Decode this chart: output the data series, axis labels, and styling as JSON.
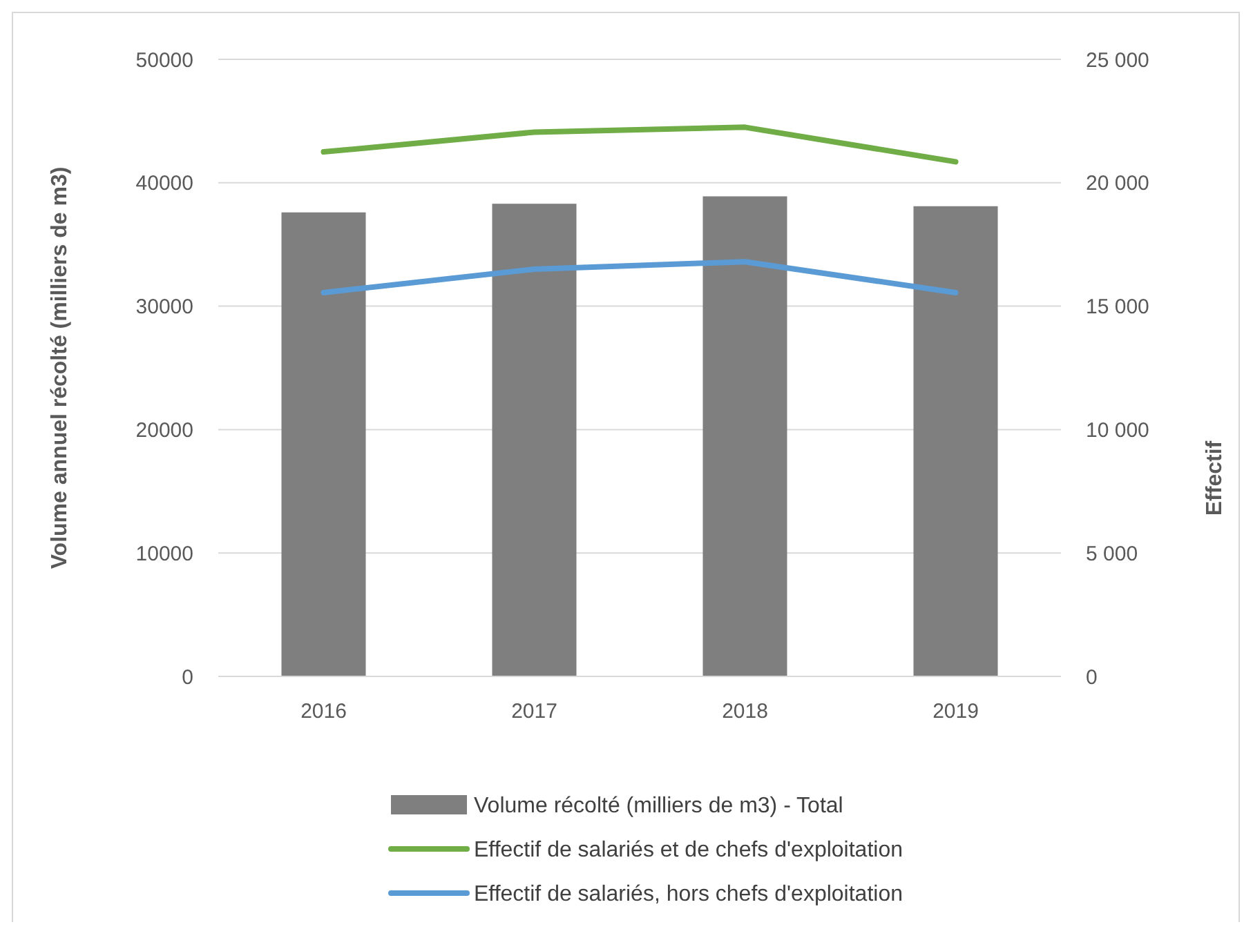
{
  "chart_data": {
    "type": "bar",
    "categories": [
      "2016",
      "2017",
      "2018",
      "2019"
    ],
    "ylabel": "Volume annuel récolté (milliers de m3)",
    "y2label": "Effectif",
    "ylim": [
      0,
      50000
    ],
    "yticks": [
      0,
      10000,
      20000,
      30000,
      40000,
      50000
    ],
    "y2lim": [
      0,
      25000
    ],
    "y2ticks": [
      {
        "value": 0,
        "label": "0"
      },
      {
        "value": 5000,
        "label": "5 000"
      },
      {
        "value": 10000,
        "label": "10 000"
      },
      {
        "value": 15000,
        "label": "15 000"
      },
      {
        "value": 20000,
        "label": "20 000"
      },
      {
        "value": 25000,
        "label": "25 000"
      }
    ],
    "grid": "y",
    "legend": "bottom",
    "series": [
      {
        "name": "Volume récolté (milliers de m3) - Total",
        "color": "#7f7f7f",
        "values": [
          37600,
          38300,
          38900,
          38100
        ]
      },
      {
        "name": "Effectif de salariés et de chefs d'exploitation",
        "type": "line",
        "axis": "y2",
        "color": "#70ad47",
        "values": [
          21250,
          22050,
          22250,
          20850
        ]
      },
      {
        "name": "Effectif de salariés, hors  chefs d'exploitation",
        "type": "line",
        "axis": "y2",
        "color": "#5b9bd5",
        "values": [
          15550,
          16500,
          16800,
          15550
        ]
      }
    ]
  }
}
